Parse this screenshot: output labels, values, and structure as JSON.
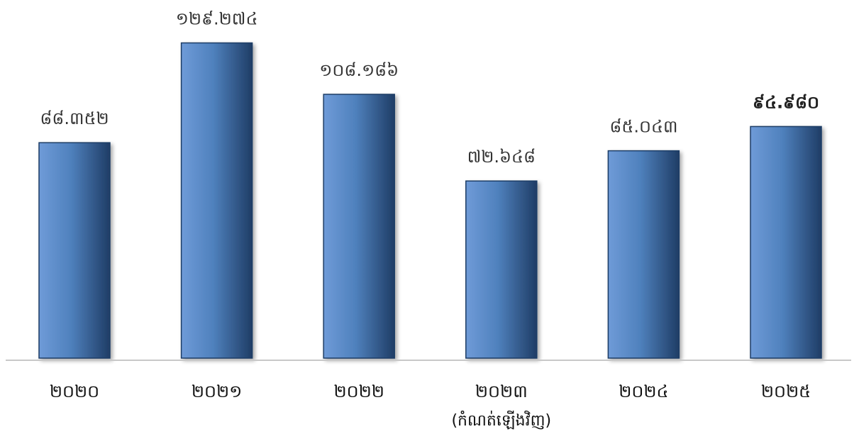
{
  "chart_data": {
    "type": "bar",
    "title": "",
    "xlabel": "",
    "ylabel": "",
    "categories": [
      "2020",
      "2021",
      "2022",
      "2023",
      "2024",
      "2025"
    ],
    "category_labels": [
      "២០២០",
      "២០២១",
      "២០២២",
      "២០២៣",
      "២០២៤",
      "២០២៥"
    ],
    "category_notes": [
      "",
      "",
      "",
      "(កំណត់ឡើងវិញ)",
      "",
      ""
    ],
    "values": [
      88.352,
      129.274,
      108.186,
      72.648,
      85.043,
      94.98
    ],
    "value_labels": [
      "៨៨.៣៥២",
      "១២៩.២៧៤",
      "១០៨.១៨៦",
      "៧២.៦៤៨",
      "៨៥.០៤៣",
      "៩៤.៩៨០"
    ],
    "highlight_index": 5,
    "ylim": [
      0,
      130
    ],
    "grid": false,
    "colors": {
      "bar_light": "#6f9bd8",
      "bar_mid": "#4f81bd",
      "bar_dark": "#1f3d66",
      "baseline": "#c8c8c8"
    }
  }
}
